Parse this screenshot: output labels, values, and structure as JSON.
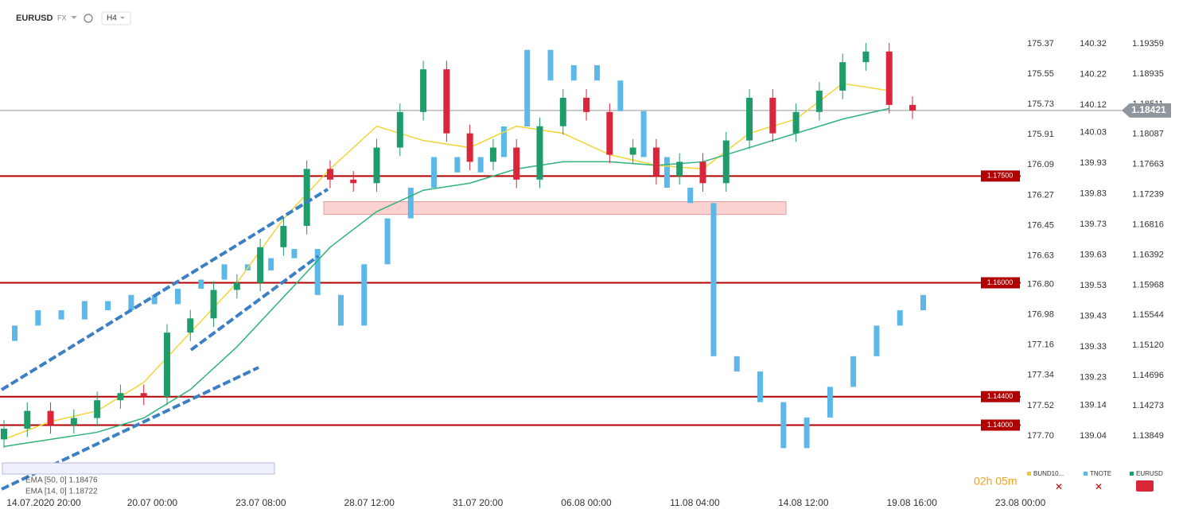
{
  "header": {
    "symbol": "EURUSD",
    "market": "FX",
    "interval": "H4"
  },
  "legend": [
    "BUND10...",
    "TNOTE",
    "EURUSD"
  ],
  "indicators": [
    "EMA [50, 0] 1.18476",
    "EMA [14, 0] 1.18722"
  ],
  "timer": "02h 05m",
  "current_price": {
    "value": 1.18421,
    "label": "1.18421"
  },
  "x_labels": [
    "14.07.2020 20:00",
    "20.07 00:00",
    "23.07 08:00",
    "28.07 12:00",
    "31.07 20:00",
    "06.08 00:00",
    "11.08 04:00",
    "14.08 12:00",
    "19.08 16:00",
    "23.08 00:00"
  ],
  "axes": {
    "bund": {
      "ylim": [
        177.7,
        175.37
      ],
      "yticks": [
        175.37,
        175.55,
        175.73,
        175.91,
        176.09,
        176.27,
        176.45,
        176.63,
        {
          "value": 176.8,
          "label": "176.80"
        },
        176.98,
        177.16,
        177.34,
        177.52,
        {
          "value": 177.7,
          "label": "177.70"
        }
      ]
    },
    "tnote": {
      "ylim": [
        139.04,
        140.32
      ],
      "yticks": [
        140.32,
        140.22,
        140.12,
        140.03,
        139.93,
        139.83,
        139.73,
        139.63,
        139.53,
        139.43,
        139.33,
        139.23,
        139.14,
        139.04
      ]
    },
    "eurusd": {
      "ylim": [
        1.13849,
        1.19359
      ],
      "yticks": [
        1.19359,
        1.18935,
        1.18511,
        1.18087,
        1.17663,
        1.17239,
        1.16816,
        1.16392,
        1.15968,
        1.15544,
        {
          "value": 1.1512,
          "label": "1.15120"
        },
        1.14696,
        1.14273,
        1.13849
      ]
    }
  },
  "levels": [
    {
      "value": 1.175,
      "label": "1.17500"
    },
    {
      "value": 1.16,
      "label": "1.16000"
    },
    {
      "value": 1.144,
      "label": "1.14400"
    },
    {
      "value": 1.14,
      "label": "1.14000"
    }
  ],
  "zone": {
    "low": 1.1696,
    "high": 1.1714
  },
  "eurusd_candles": {
    "open": [
      1.138,
      1.1395,
      1.142,
      1.14,
      1.141,
      1.1435,
      1.1445,
      1.144,
      1.153,
      1.155,
      1.159,
      1.16,
      1.165,
      1.168,
      1.176,
      1.1745,
      1.174,
      1.179,
      1.184,
      1.19,
      1.181,
      1.177,
      1.179,
      1.1745,
      1.182,
      1.186,
      1.184,
      1.178,
      1.179,
      1.175,
      1.177,
      1.174,
      1.18,
      1.186,
      1.181,
      1.184,
      1.187,
      1.191,
      1.1925,
      1.185
    ],
    "high": [
      1.1407,
      1.1432,
      1.1432,
      1.1422,
      1.1447,
      1.1457,
      1.1457,
      1.1542,
      1.1562,
      1.1602,
      1.1612,
      1.1662,
      1.1692,
      1.1772,
      1.1772,
      1.1757,
      1.1802,
      1.1852,
      1.1912,
      1.1912,
      1.1822,
      1.1802,
      1.1802,
      1.1832,
      1.1872,
      1.1872,
      1.1852,
      1.1802,
      1.1802,
      1.1782,
      1.1782,
      1.1812,
      1.1872,
      1.1872,
      1.1852,
      1.1882,
      1.1922,
      1.1937,
      1.1937,
      1.1862
    ],
    "low": [
      1.1368,
      1.1383,
      1.1388,
      1.1388,
      1.1398,
      1.1423,
      1.1428,
      1.1428,
      1.1518,
      1.1538,
      1.1578,
      1.1588,
      1.1638,
      1.1668,
      1.1733,
      1.1728,
      1.1728,
      1.1778,
      1.1828,
      1.1798,
      1.1758,
      1.1758,
      1.1733,
      1.1733,
      1.1808,
      1.1828,
      1.1768,
      1.1768,
      1.1738,
      1.1738,
      1.1728,
      1.1728,
      1.1788,
      1.1798,
      1.1798,
      1.1828,
      1.1858,
      1.1898,
      1.1838,
      1.183
    ],
    "close": [
      1.1395,
      1.142,
      1.14,
      1.141,
      1.1435,
      1.1445,
      1.144,
      1.153,
      1.155,
      1.159,
      1.16,
      1.165,
      1.168,
      1.176,
      1.1745,
      1.174,
      1.179,
      1.184,
      1.19,
      1.181,
      1.177,
      1.179,
      1.1745,
      1.182,
      1.186,
      1.184,
      1.178,
      1.179,
      1.175,
      1.177,
      1.174,
      1.18,
      1.186,
      1.181,
      1.184,
      1.187,
      1.191,
      1.1925,
      1.185,
      1.1842
    ]
  },
  "tnote_candles": {
    "open": [
      139.35,
      139.4,
      139.45,
      139.42,
      139.48,
      139.45,
      139.5,
      139.47,
      139.52,
      139.55,
      139.6,
      139.58,
      139.62,
      139.65,
      139.5,
      139.4,
      139.6,
      139.75,
      139.85,
      139.95,
      139.9,
      139.95,
      140.05,
      140.3,
      140.2,
      140.25,
      140.2,
      140.1,
      139.95,
      139.85,
      139.8,
      139.3,
      139.25,
      139.15,
      139.0,
      139.1,
      139.2,
      139.3,
      139.4,
      139.45
    ],
    "close": [
      139.4,
      139.45,
      139.42,
      139.48,
      139.45,
      139.5,
      139.47,
      139.52,
      139.55,
      139.6,
      139.58,
      139.62,
      139.65,
      139.5,
      139.4,
      139.6,
      139.75,
      139.85,
      139.95,
      139.9,
      139.95,
      140.05,
      140.3,
      140.2,
      140.25,
      140.2,
      140.1,
      139.95,
      139.85,
      139.8,
      139.3,
      139.25,
      139.15,
      139.0,
      139.1,
      139.2,
      139.3,
      139.4,
      139.45,
      139.5
    ]
  },
  "ema14": [
    1.138,
    1.1405,
    1.142,
    1.146,
    1.153,
    1.16,
    1.169,
    1.176,
    1.182,
    1.18,
    1.179,
    1.182,
    1.181,
    1.178,
    1.1765,
    1.176,
    1.181,
    1.183,
    1.188,
    1.187
  ],
  "ema50": [
    1.137,
    1.138,
    1.139,
    1.141,
    1.145,
    1.151,
    1.158,
    1.165,
    1.17,
    1.173,
    1.174,
    1.176,
    1.177,
    1.177,
    1.1765,
    1.177,
    1.179,
    1.181,
    1.183,
    1.1845
  ]
}
